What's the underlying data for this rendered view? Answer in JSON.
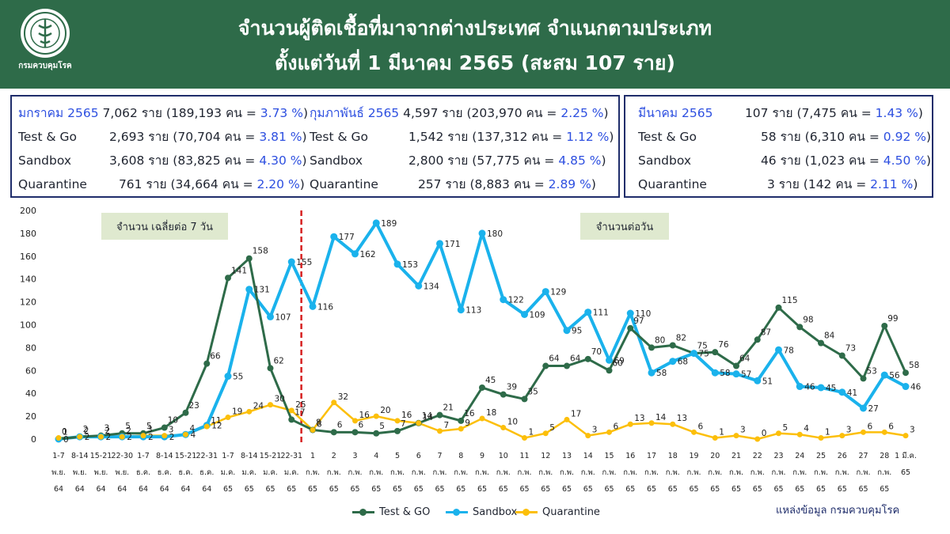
{
  "header": {
    "title_line1": "จำนวนผู้ติดเชื้อที่มาจากต่างประเทศ จำแนกตามประเภท",
    "title_line2": "ตั้งแต่วันที่  1  มีนาคม  2565 (สะสม 107 ราย)",
    "logo_text": "กรมควบคุมโรค"
  },
  "summary": {
    "jan": {
      "month": "มกราคม 2565",
      "total": "7,062 ราย",
      "total_paren_open": "(189,193 คน = ",
      "total_pct": "3.73 %",
      "test_go_label": "Test & Go",
      "test_go": "2,693 ราย",
      "test_go_paren": "(70,704 คน = ",
      "test_go_pct": "3.81 %",
      "sandbox_label": "Sandbox",
      "sandbox": "3,608 ราย",
      "sandbox_paren": "(83,825 คน = ",
      "sandbox_pct": "4.30 %",
      "quarantine_label": "Quarantine",
      "quarantine": "761 ราย",
      "quarantine_paren": "(34,664 คน = ",
      "quarantine_pct": "2.20 %"
    },
    "feb": {
      "month": "กุมภาพันธ์ 2565",
      "total": "4,597 ราย",
      "total_paren_open": "(203,970 คน = ",
      "total_pct": "2.25 %",
      "test_go_label": "Test & Go",
      "test_go": "1,542 ราย",
      "test_go_paren": "(137,312 คน  = ",
      "test_go_pct": "1.12 %",
      "sandbox_label": "Sandbox",
      "sandbox": "2,800 ราย",
      "sandbox_paren": "(57,775 คน  = ",
      "sandbox_pct": "4.85 %",
      "quarantine_label": "Quarantine",
      "quarantine": "257 ราย",
      "quarantine_paren": "(8,883 คน    = ",
      "quarantine_pct": "2.89 %"
    },
    "mar": {
      "month": "มีนาคม 2565",
      "total": "107 ราย",
      "total_paren_open": "(7,475 คน = ",
      "total_pct": "1.43 %",
      "test_go_label": "Test & Go",
      "test_go": "58 ราย",
      "test_go_paren": "(6,310 คน  = ",
      "test_go_pct": "0.92 %",
      "sandbox_label": "Sandbox",
      "sandbox": "46 ราย",
      "sandbox_paren": "(1,023 คน  = ",
      "sandbox_pct": "4.50 %",
      "quarantine_label": "Quarantine",
      "quarantine": "3 ราย",
      "quarantine_paren": "(142 คน     = ",
      "quarantine_pct": "2.11 %"
    }
  },
  "chart_labels": {
    "weekly_avg": "จำนวน เฉลี่ยต่อ 7 วัน",
    "daily": "จำนวนต่อวัน",
    "source": "แหล่งข้อมูล กรมควบคุมโรค"
  },
  "colors": {
    "header_bg": "#2e6b49",
    "test_go": "#2e6b49",
    "sandbox": "#1ab2ec",
    "quarantine": "#fcbf0a",
    "divider": "#d62020",
    "pct_blue": "#2d4fe0"
  },
  "chart_data": {
    "type": "line",
    "ylim": [
      0,
      200
    ],
    "yticks": [
      0,
      20,
      40,
      60,
      80,
      100,
      120,
      140,
      160,
      180,
      200
    ],
    "categories": [
      [
        "1-7",
        "พ.ย.",
        "64"
      ],
      [
        "8-14",
        "พ.ย.",
        "64"
      ],
      [
        "15-21",
        "พ.ย.",
        "64"
      ],
      [
        "22-30",
        "พ.ย.",
        "64"
      ],
      [
        "1-7",
        "ธ.ค.",
        "64"
      ],
      [
        "8-14",
        "ธ.ค.",
        "64"
      ],
      [
        "15-21",
        "ธ.ค.",
        "64"
      ],
      [
        "22-31",
        "ธ.ค.",
        "64"
      ],
      [
        "1-7",
        "ม.ค.",
        "65"
      ],
      [
        "8-14",
        "ม.ค.",
        "65"
      ],
      [
        "15-21",
        "ม.ค.",
        "65"
      ],
      [
        "22-31",
        "ม.ค.",
        "65"
      ],
      [
        "1",
        "ก.พ.",
        "65"
      ],
      [
        "2",
        "ก.พ.",
        "65"
      ],
      [
        "3",
        "ก.พ.",
        "65"
      ],
      [
        "4",
        "ก.พ.",
        "65"
      ],
      [
        "5",
        "ก.พ.",
        "65"
      ],
      [
        "6",
        "ก.พ.",
        "65"
      ],
      [
        "7",
        "ก.พ.",
        "65"
      ],
      [
        "8",
        "ก.พ.",
        "65"
      ],
      [
        "9",
        "ก.พ.",
        "65"
      ],
      [
        "10",
        "ก.พ.",
        "65"
      ],
      [
        "11",
        "ก.พ.",
        "65"
      ],
      [
        "12",
        "ก.พ.",
        "65"
      ],
      [
        "13",
        "ก.พ.",
        "65"
      ],
      [
        "14",
        "ก.พ.",
        "65"
      ],
      [
        "15",
        "ก.พ.",
        "65"
      ],
      [
        "16",
        "ก.พ.",
        "65"
      ],
      [
        "17",
        "ก.พ.",
        "65"
      ],
      [
        "18",
        "ก.พ.",
        "65"
      ],
      [
        "19",
        "ก.พ.",
        "65"
      ],
      [
        "20",
        "ก.พ.",
        "65"
      ],
      [
        "21",
        "ก.พ.",
        "65"
      ],
      [
        "22",
        "ก.พ.",
        "65"
      ],
      [
        "23",
        "ก.พ.",
        "65"
      ],
      [
        "24",
        "ก.พ.",
        "65"
      ],
      [
        "25",
        "ก.พ.",
        "65"
      ],
      [
        "26",
        "ก.พ.",
        "65"
      ],
      [
        "27",
        "ก.พ.",
        "65"
      ],
      [
        "28",
        "ก.พ.",
        "65"
      ],
      [
        "1 มี.ค.",
        "65",
        ""
      ]
    ],
    "divider_after_index": 11,
    "series": [
      {
        "name": "Test & GO",
        "color": "#2e6b49",
        "values": [
          0,
          2,
          3,
          5,
          5,
          10,
          23,
          66,
          141,
          158,
          62,
          17,
          8,
          6,
          6,
          5,
          7,
          14,
          21,
          16,
          45,
          39,
          35,
          64,
          64,
          70,
          60,
          97,
          80,
          82,
          75,
          76,
          64,
          87,
          115,
          98,
          84,
          73,
          53,
          99,
          58
        ]
      },
      {
        "name": "Sandbox",
        "color": "#1ab2ec",
        "values": [
          0,
          2,
          2,
          2,
          2,
          2,
          4,
          12,
          55,
          131,
          107,
          155,
          116,
          177,
          162,
          189,
          153,
          134,
          171,
          113,
          180,
          122,
          109,
          129,
          95,
          111,
          69,
          110,
          58,
          68,
          75,
          58,
          57,
          51,
          78,
          46,
          45,
          41,
          27,
          56,
          46
        ]
      },
      {
        "name": "Quarantine",
        "color": "#fcbf0a",
        "values": [
          1,
          2,
          2,
          2,
          3,
          3,
          4,
          11,
          19,
          24,
          30,
          25,
          8,
          32,
          16,
          20,
          16,
          14,
          7,
          9,
          18,
          10,
          1,
          5,
          17,
          3,
          6,
          13,
          14,
          13,
          6,
          1,
          3,
          0,
          5,
          4,
          1,
          3,
          6,
          6,
          3
        ]
      }
    ]
  }
}
